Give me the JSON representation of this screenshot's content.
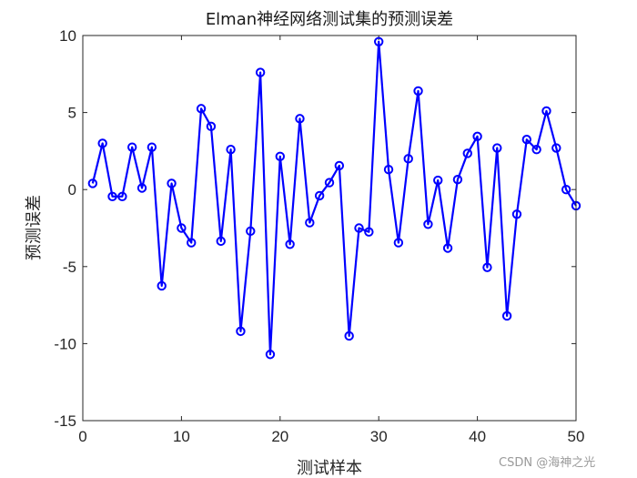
{
  "chart_data": {
    "type": "line",
    "title": "Elman神经网络测试集的预测误差",
    "xlabel": "测试样本",
    "ylabel": "预测误差",
    "xlim": [
      0,
      50
    ],
    "ylim": [
      -15,
      10
    ],
    "xticks": [
      0,
      10,
      20,
      30,
      40,
      50
    ],
    "yticks": [
      -15,
      -10,
      -5,
      0,
      5,
      10
    ],
    "grid": false,
    "marker": "circle",
    "color": "#0000ff",
    "series": [
      {
        "x": [
          1,
          2,
          3,
          4,
          5,
          6,
          7,
          8,
          9,
          10,
          11,
          12,
          13,
          14,
          15,
          16,
          17,
          18,
          19,
          20,
          21,
          22,
          23,
          24,
          25,
          26,
          27,
          28,
          29,
          30,
          31,
          32,
          33,
          34,
          35,
          36,
          37,
          38,
          39,
          40,
          41,
          42,
          43,
          44,
          45,
          46,
          47,
          48,
          49,
          50
        ],
        "values": [
          0.4,
          3.0,
          -0.45,
          -0.45,
          2.75,
          0.1,
          2.75,
          -6.25,
          0.4,
          -2.5,
          -3.45,
          5.25,
          4.1,
          -3.35,
          2.6,
          -9.2,
          -2.7,
          7.6,
          -10.7,
          2.15,
          -3.55,
          4.6,
          -2.15,
          -0.4,
          0.45,
          1.55,
          -9.5,
          -2.5,
          -2.75,
          9.6,
          1.3,
          -3.45,
          2.0,
          6.4,
          -2.25,
          0.6,
          -3.8,
          0.65,
          2.35,
          3.45,
          -5.05,
          2.7,
          -8.2,
          -1.6,
          3.25,
          2.6,
          5.1,
          2.7,
          0.0,
          -1.05
        ]
      }
    ]
  },
  "watermark": "CSDN @海神之光"
}
